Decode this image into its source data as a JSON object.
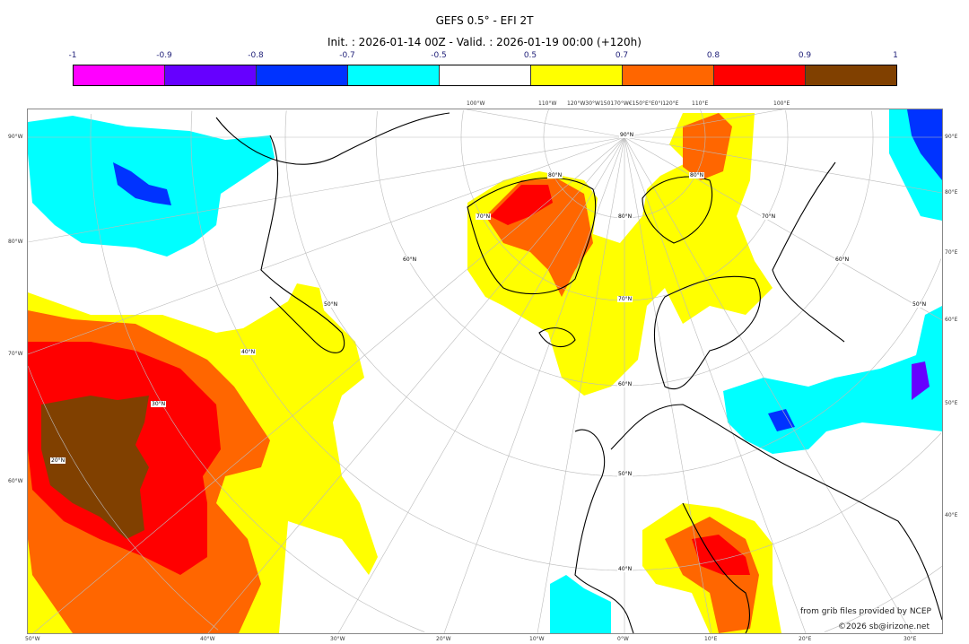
{
  "title": "GEFS 0.5° - EFI 2T",
  "subtitle": "Init. : 2026-01-14 00Z - Valid. : 2026-01-19 00:00 (+120h)",
  "colorbar": {
    "ticks": [
      "-1",
      "-0.9",
      "-0.8",
      "-0.7",
      "-0.5",
      "0.5",
      "0.7",
      "0.8",
      "0.9",
      "1"
    ],
    "colors": [
      "#ff00ff",
      "#6600ff",
      "#0033ff",
      "#00ffff",
      "#ffffff",
      "#ffff00",
      "#ff6600",
      "#ff0000",
      "#804000"
    ]
  },
  "axes": {
    "left": [
      "90°W",
      "80°W",
      "70°W",
      "60°W"
    ],
    "right": [
      "90°E",
      "80°E",
      "70°E",
      "60°E",
      "50°E",
      "40°E"
    ],
    "bottom": [
      "50°W",
      "40°W",
      "30°W",
      "20°W",
      "10°W",
      "0°W",
      "10°E",
      "20°E",
      "30°E"
    ],
    "top": [
      "100°W",
      "110°W",
      "120°W30°W150170°W€150°E°E0°I120°E",
      "110°E",
      "100°E"
    ]
  },
  "lat_labels": [
    "90°N",
    "80°N",
    "80°N",
    "80°N",
    "70°N",
    "70°N",
    "70°N",
    "60°N",
    "60°N",
    "60°N",
    "50°N",
    "50°N",
    "50°N",
    "40°N",
    "40°N",
    "30°N",
    "20°N"
  ],
  "credits": {
    "line1": "from grib files provided by NCEP",
    "line2": "©2026 sb@irizone.net"
  }
}
